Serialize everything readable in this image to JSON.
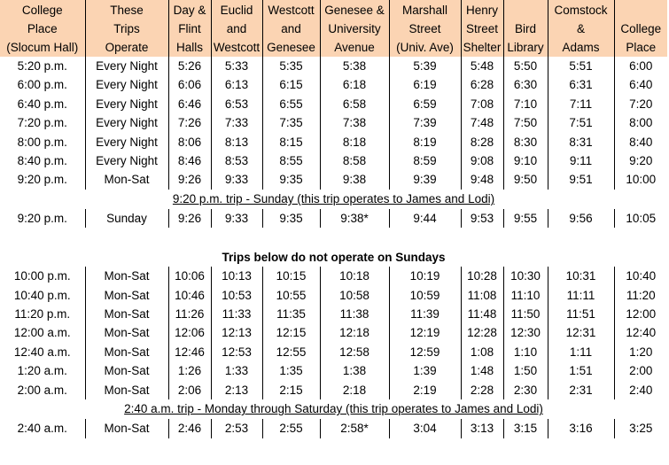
{
  "headers": [
    [
      "College",
      "Place",
      "(Slocum Hall)"
    ],
    [
      "These",
      "Trips",
      "Operate"
    ],
    [
      "Day &",
      "Flint",
      "Halls"
    ],
    [
      "Euclid",
      "and",
      "Westcott"
    ],
    [
      "Westcott",
      "and",
      "Genesee"
    ],
    [
      "Genesee &",
      "University",
      "Avenue"
    ],
    [
      "Marshall",
      "Street",
      "(Univ. Ave)"
    ],
    [
      "Henry",
      "Street",
      "Shelter"
    ],
    [
      "",
      "Bird",
      "Library"
    ],
    [
      "Comstock",
      "&",
      "Adams"
    ],
    [
      "",
      "College",
      "Place"
    ]
  ],
  "block1": [
    [
      "5:20 p.m.",
      "Every Night",
      "5:26",
      "5:33",
      "5:35",
      "5:38",
      "5:39",
      "5:48",
      "5:50",
      "5:51",
      "6:00"
    ],
    [
      "6:00 p.m.",
      "Every Night",
      "6:06",
      "6:13",
      "6:15",
      "6:18",
      "6:19",
      "6:28",
      "6:30",
      "6:31",
      "6:40"
    ],
    [
      "6:40 p.m.",
      "Every Night",
      "6:46",
      "6:53",
      "6:55",
      "6:58",
      "6:59",
      "7:08",
      "7:10",
      "7:11",
      "7:20"
    ],
    [
      "7:20 p.m.",
      "Every Night",
      "7:26",
      "7:33",
      "7:35",
      "7:38",
      "7:39",
      "7:48",
      "7:50",
      "7:51",
      "8:00"
    ],
    [
      "8:00 p.m.",
      "Every Night",
      "8:06",
      "8:13",
      "8:15",
      "8:18",
      "8:19",
      "8:28",
      "8:30",
      "8:31",
      "8:40"
    ],
    [
      "8:40 p.m.",
      "Every Night",
      "8:46",
      "8:53",
      "8:55",
      "8:58",
      "8:59",
      "9:08",
      "9:10",
      "9:11",
      "9:20"
    ],
    [
      "9:20 p.m.",
      "Mon-Sat",
      "9:26",
      "9:33",
      "9:35",
      "9:38",
      "9:39",
      "9:48",
      "9:50",
      "9:51",
      "10:00"
    ]
  ],
  "note_sunday": "9:20 p.m. trip - Sunday (this trip operates to James and Lodi)",
  "block2": [
    [
      "9:20 p.m.",
      "Sunday",
      "9:26",
      "9:33",
      "9:35",
      "9:38*",
      "9:44",
      "9:53",
      "9:55",
      "9:56",
      "10:05"
    ]
  ],
  "note_no_sunday": "Trips below do not operate on Sundays",
  "block3": [
    [
      "10:00 p.m.",
      "Mon-Sat",
      "10:06",
      "10:13",
      "10:15",
      "10:18",
      "10:19",
      "10:28",
      "10:30",
      "10:31",
      "10:40"
    ],
    [
      "10:40 p.m.",
      "Mon-Sat",
      "10:46",
      "10:53",
      "10:55",
      "10:58",
      "10:59",
      "11:08",
      "11:10",
      "11:11",
      "11:20"
    ],
    [
      "11:20 p.m.",
      "Mon-Sat",
      "11:26",
      "11:33",
      "11:35",
      "11:38",
      "11:39",
      "11:48",
      "11:50",
      "11:51",
      "12:00"
    ],
    [
      "12:00 a.m.",
      "Mon-Sat",
      "12:06",
      "12:13",
      "12:15",
      "12:18",
      "12:19",
      "12:28",
      "12:30",
      "12:31",
      "12:40"
    ],
    [
      "12:40 a.m.",
      "Mon-Sat",
      "12:46",
      "12:53",
      "12:55",
      "12:58",
      "12:59",
      "1:08",
      "1:10",
      "1:11",
      "1:20"
    ],
    [
      "1:20 a.m.",
      "Mon-Sat",
      "1:26",
      "1:33",
      "1:35",
      "1:38",
      "1:39",
      "1:48",
      "1:50",
      "1:51",
      "2:00"
    ],
    [
      "2:00 a.m.",
      "Mon-Sat",
      "2:06",
      "2:13",
      "2:15",
      "2:18",
      "2:19",
      "2:28",
      "2:30",
      "2:31",
      "2:40"
    ]
  ],
  "note_mon_sat": "2:40 a.m. trip - Monday through Saturday (this trip operates to James and Lodi)",
  "block4": [
    [
      "2:40 a.m.",
      "Mon-Sat",
      "2:46",
      "2:53",
      "2:55",
      "2:58*",
      "3:04",
      "3:13",
      "3:15",
      "3:16",
      "3:25"
    ]
  ]
}
